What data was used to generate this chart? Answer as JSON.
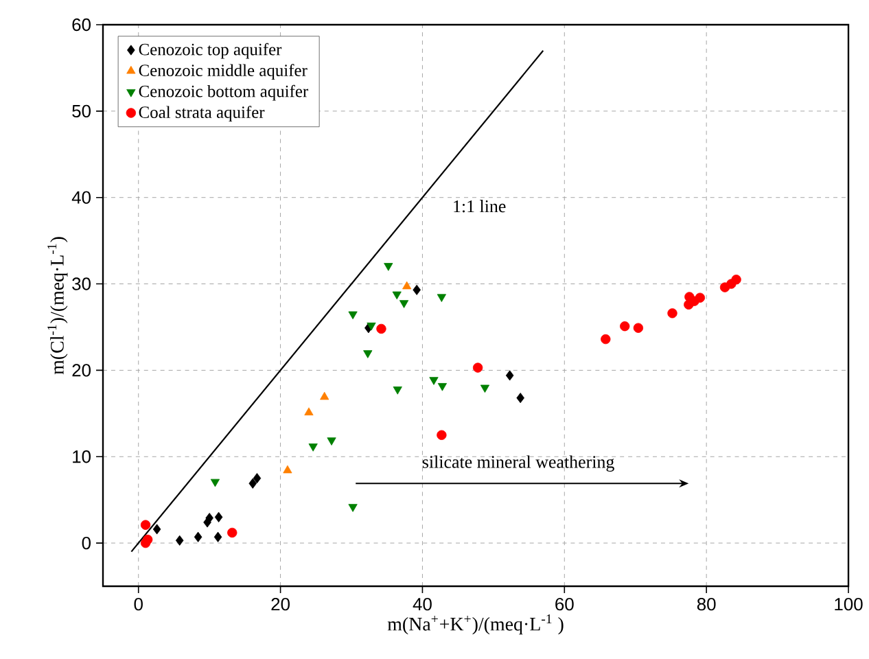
{
  "chart_data": {
    "type": "scatter",
    "xlabel": "m(Na$^{+}$+K$^{+}$)/(meq·L$^{-1}$ )",
    "ylabel": "m(Cl$^{-1}$)/(meq·L$^{-1}$)",
    "xlim": [
      -5,
      100
    ],
    "ylim": [
      -5,
      60
    ],
    "xticks": [
      0,
      20,
      40,
      60,
      80,
      100
    ],
    "yticks": [
      0,
      10,
      20,
      30,
      40,
      50,
      60
    ],
    "grid": true,
    "legend": "top left",
    "annotations": [
      "1:1 line",
      "silicate mineral weathering"
    ],
    "series": [
      {
        "name": "Cenozoic top aquifer",
        "color": "#000000",
        "marker": "diamond",
        "x": [
          2.6,
          5.8,
          8.4,
          11.2,
          10.0,
          11.3,
          9.7,
          16.1,
          16.7,
          32.4,
          39.2,
          52.3,
          53.8
        ],
        "values": [
          1.6,
          0.3,
          0.7,
          0.7,
          2.9,
          3.0,
          2.4,
          6.9,
          7.5,
          24.9,
          29.3,
          19.4,
          16.8
        ]
      },
      {
        "name": "Cenozoic middle aquifer",
        "color": "#ff8000",
        "marker": "triangle",
        "x": [
          21.0,
          24.0,
          26.2,
          37.8
        ],
        "values": [
          8.4,
          15.1,
          16.9,
          29.7
        ]
      },
      {
        "name": "Cenozoic bottom aquifer",
        "color": "#008000",
        "marker": "triangle down",
        "x": [
          10.8,
          35.2,
          36.4,
          37.4,
          42.7,
          30.2,
          32.8,
          32.3,
          36.5,
          41.6,
          42.8,
          48.8,
          24.6,
          27.2,
          30.2
        ],
        "values": [
          7.1,
          32.1,
          28.8,
          27.8,
          28.5,
          26.5,
          25.2,
          22.0,
          17.8,
          18.9,
          18.2,
          18.0,
          11.2,
          11.9,
          4.2
        ]
      },
      {
        "name": "Coal strata aquifer",
        "color": "#ff0000",
        "marker": "circle",
        "x": [
          1.0,
          1.3,
          1.0,
          13.2,
          34.2,
          47.8,
          42.7,
          65.8,
          68.5,
          70.4,
          75.2,
          77.6,
          77.5,
          78.3,
          79.1,
          82.6,
          84.2,
          83.5
        ],
        "values": [
          2.1,
          0.4,
          0.0,
          1.2,
          24.8,
          20.3,
          12.5,
          23.6,
          25.1,
          24.9,
          26.6,
          28.5,
          27.6,
          28.0,
          28.4,
          29.6,
          30.5,
          30.0
        ]
      },
      {
        "type": "line",
        "color": "#000000",
        "marker": "none",
        "x": [
          -1,
          57
        ],
        "values": [
          -1,
          57
        ]
      }
    ]
  }
}
